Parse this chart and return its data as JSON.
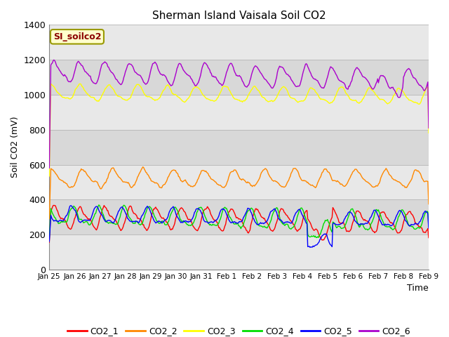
{
  "title": "Sherman Island Vaisala Soil CO2",
  "ylabel": "Soil CO2 (mV)",
  "xlabel": "Time",
  "watermark": "SI_soilco2",
  "ylim": [
    0,
    1400
  ],
  "series_colors": {
    "CO2_1": "#ff0000",
    "CO2_2": "#ff8800",
    "CO2_3": "#ffff00",
    "CO2_4": "#00dd00",
    "CO2_5": "#0000ff",
    "CO2_6": "#aa00cc"
  },
  "x_tick_labels": [
    "Jan 25",
    "Jan 26",
    "Jan 27",
    "Jan 28",
    "Jan 29",
    "Jan 30",
    "Jan 31",
    "Feb 1",
    "Feb 2",
    "Feb 3",
    "Feb 4",
    "Feb 5",
    "Feb 6",
    "Feb 7",
    "Feb 8",
    "Feb 9"
  ],
  "yticks": [
    0,
    200,
    400,
    600,
    800,
    1000,
    1200,
    1400
  ],
  "band_boundaries": [
    0,
    200,
    400,
    600,
    800,
    1000,
    1200,
    1400
  ],
  "band_colors": [
    "#e8e8e8",
    "#d8d8d8"
  ],
  "hline_color": "#c8c8c8",
  "n_points": 500,
  "seed": 42
}
